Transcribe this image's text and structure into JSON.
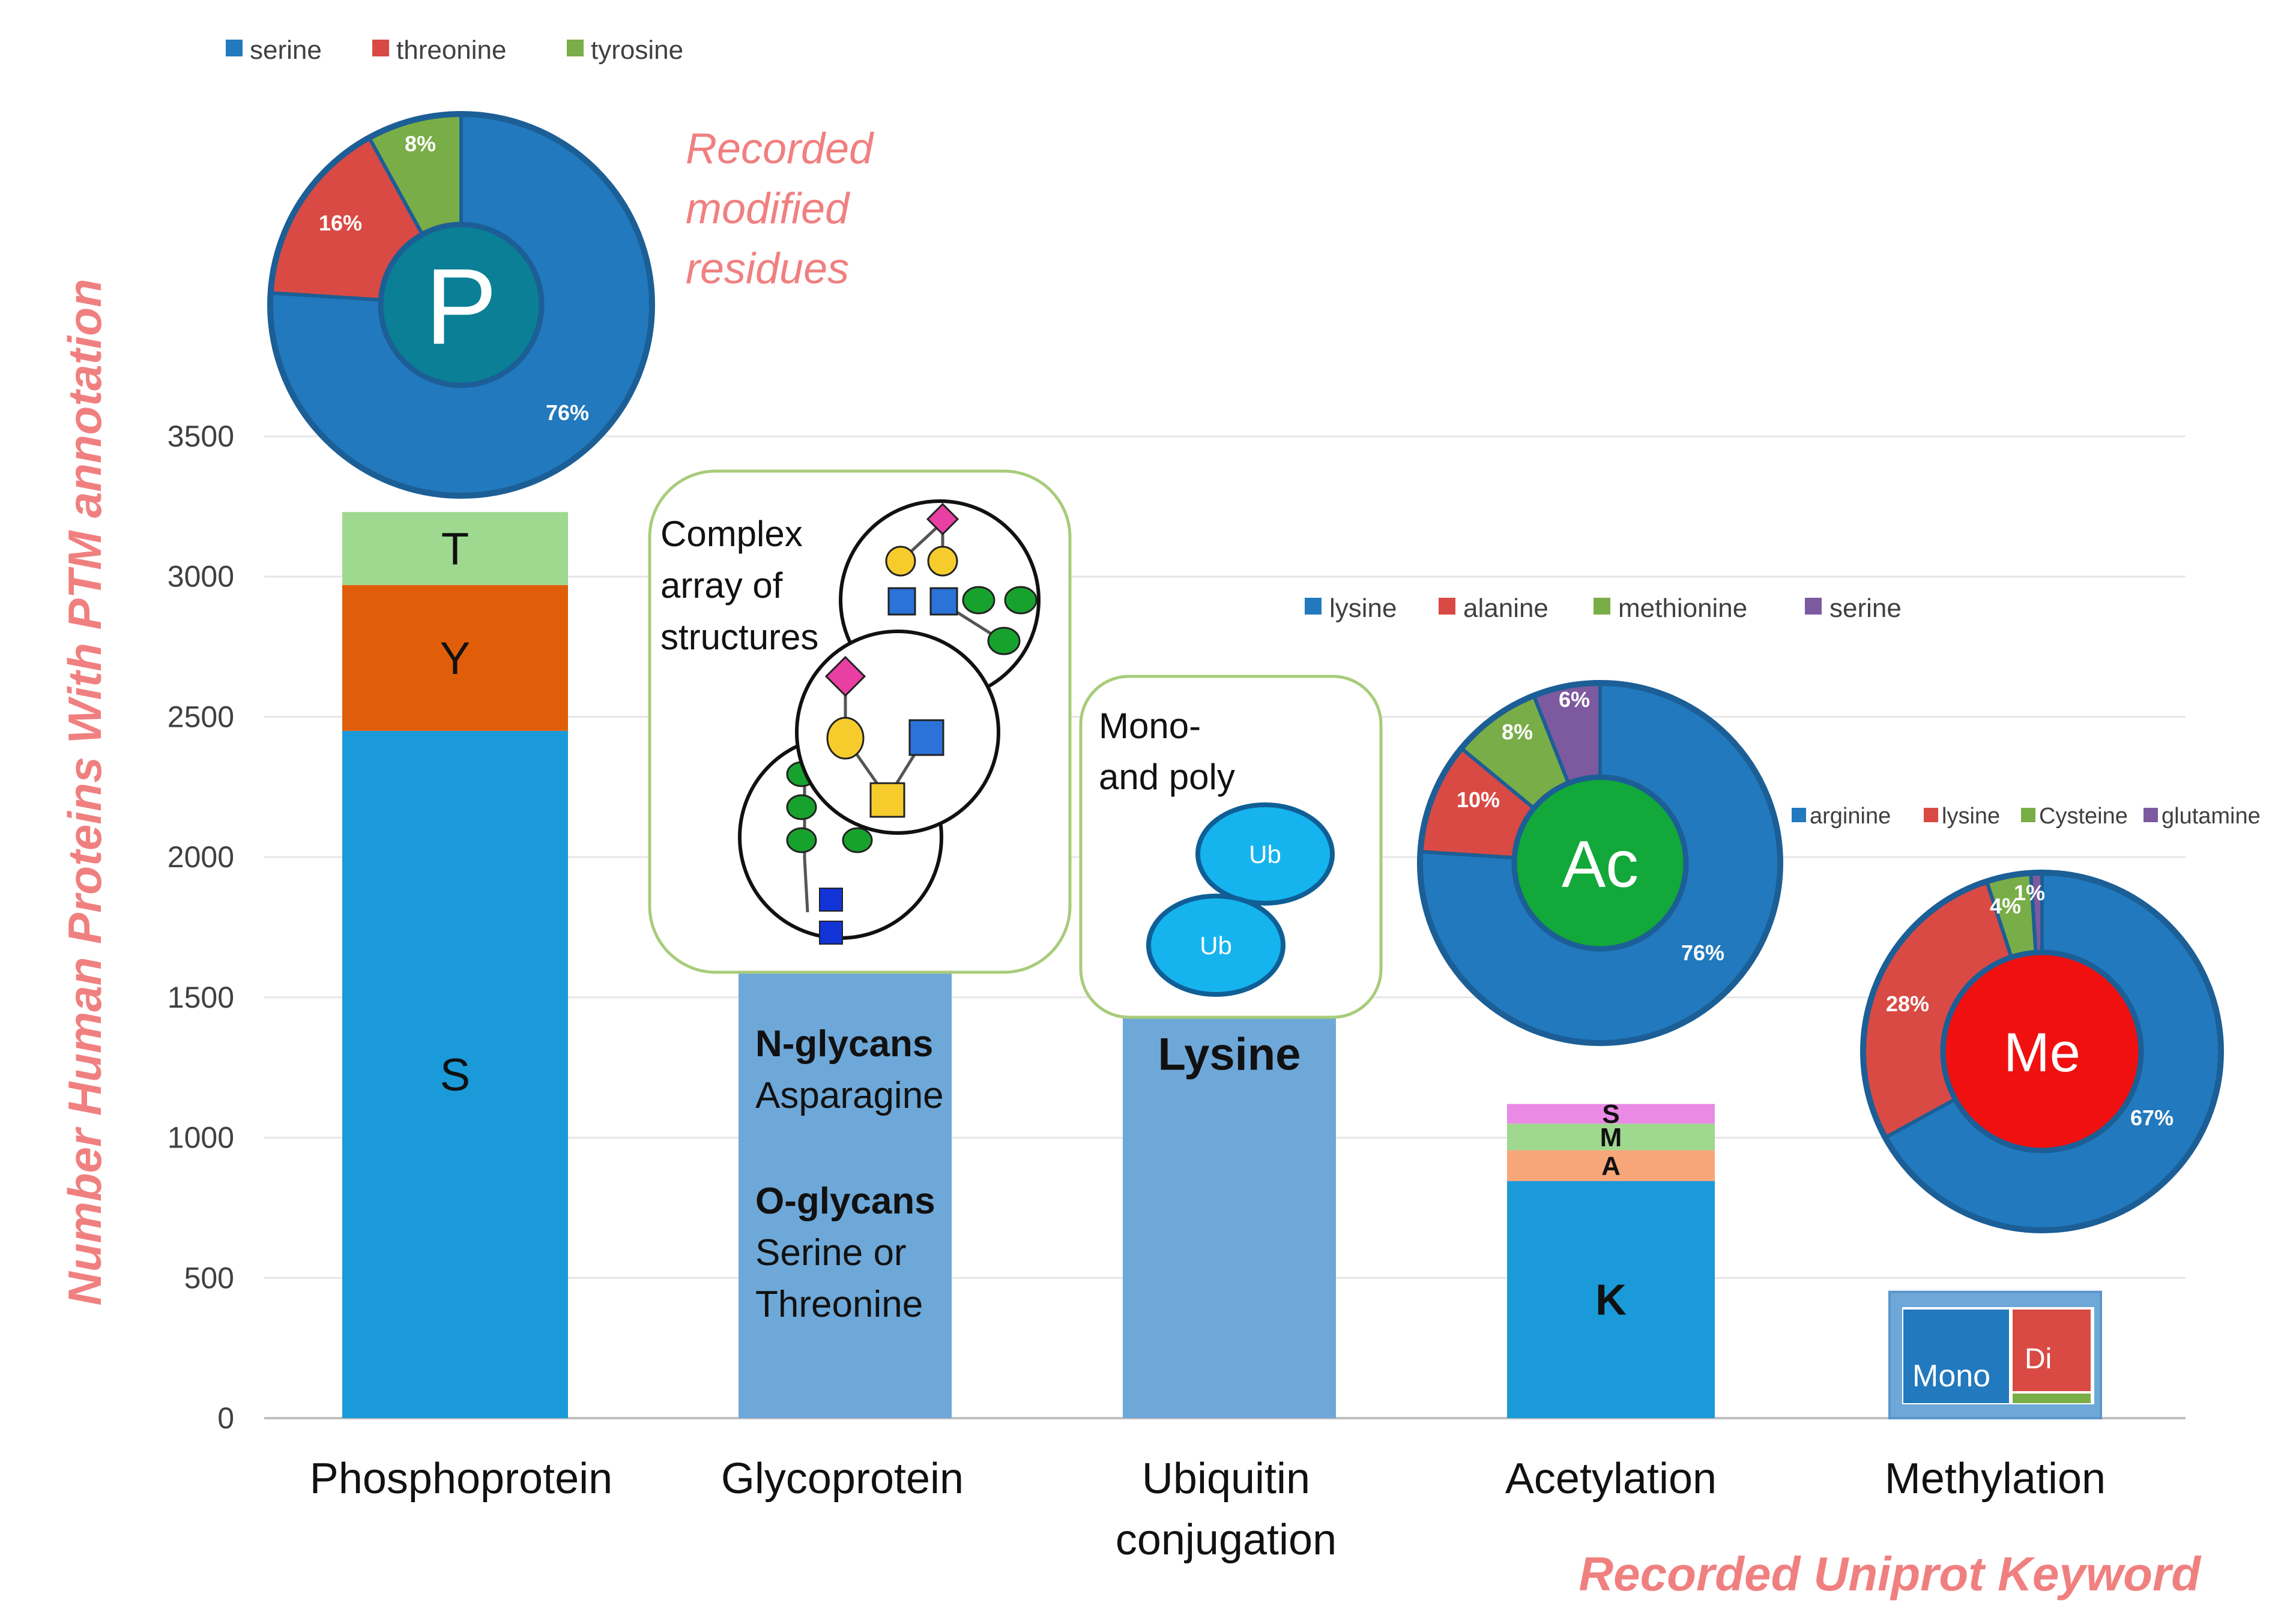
{
  "colors": {
    "serine_blue": "#2279bd",
    "threonine_red": "#d94a45",
    "tyrosine_green": "#79ad47",
    "purple": "#7d5aa0",
    "bar_S": "#1a9ad8",
    "bar_Y": "#e05e0a",
    "bar_T": "#9fd88f",
    "bar_plain": "#6ea8d8",
    "pink_text": "#f08080"
  },
  "chart_data": {
    "type": "bar",
    "ylabel": "Number Human Proteins With PTM annotation",
    "xlabel": "Recorded Uniprot Keyword",
    "ylim": [
      0,
      3500
    ],
    "yticks": [
      0,
      500,
      1000,
      1500,
      2000,
      2500,
      3000,
      3500
    ],
    "grid": true,
    "categories": [
      {
        "key": "phospho",
        "label": "Phosphoprotein",
        "stack": [
          {
            "label": "S",
            "value": 2450,
            "color": "#1a9ad8"
          },
          {
            "label": "Y",
            "value": 520,
            "color": "#e05e0a"
          },
          {
            "label": "T",
            "value": 260,
            "color": "#9fd88f"
          }
        ]
      },
      {
        "key": "glyco",
        "label": "Glycoprotein",
        "stack": [
          {
            "label": "",
            "value": 1710,
            "color": "#6ea8d8"
          }
        ]
      },
      {
        "key": "ubiq",
        "label_lines": [
          "Ubiquitin",
          "conjugation"
        ],
        "stack": [
          {
            "label": "Lysine",
            "value": 1520,
            "color": "#6ea8d8"
          }
        ]
      },
      {
        "key": "acetyl",
        "label": "Acetylation",
        "stack": [
          {
            "label": "K",
            "value": 845,
            "color": "#1a9ad8"
          },
          {
            "label": "A",
            "value": 110,
            "color": "#f7a67a"
          },
          {
            "label": "M",
            "value": 95,
            "color": "#9fd88f"
          },
          {
            "label": "S",
            "value": 70,
            "color": "#ea8ae6"
          }
        ]
      },
      {
        "key": "methyl",
        "label": "Methylation",
        "stack": [
          {
            "label": "",
            "value": 450,
            "color": "#6ea8d8"
          }
        ]
      }
    ],
    "pies": [
      {
        "key": "p",
        "center_label": "P",
        "center_color": "#0a7f96",
        "legend": [
          "serine",
          "threonine",
          "tyrosine"
        ],
        "slices": [
          {
            "name": "serine",
            "value": 76,
            "label": "76%",
            "color": "#2279bd"
          },
          {
            "name": "threonine",
            "value": 16,
            "label": "16%",
            "color": "#d94a45"
          },
          {
            "name": "tyrosine",
            "value": 8,
            "label": "8%",
            "color": "#79ad47"
          }
        ]
      },
      {
        "key": "ac",
        "center_label": "Ac",
        "center_color": "#12a83a",
        "legend": [
          "lysine",
          "alanine",
          "methionine",
          "serine"
        ],
        "slices": [
          {
            "name": "lysine",
            "value": 76,
            "label": "76%",
            "color": "#2279bd"
          },
          {
            "name": "alanine",
            "value": 10,
            "label": "10%",
            "color": "#d94a45"
          },
          {
            "name": "methionine",
            "value": 8,
            "label": "8%",
            "color": "#79ad47"
          },
          {
            "name": "serine",
            "value": 6,
            "label": "6%",
            "color": "#7d5aa0"
          }
        ]
      },
      {
        "key": "me",
        "center_label": "Me",
        "center_color": "#f01010",
        "legend": [
          "arginine",
          "lysine",
          "Cysteine",
          "glutamine"
        ],
        "slices": [
          {
            "name": "arginine",
            "value": 67,
            "label": "67%",
            "color": "#2279bd"
          },
          {
            "name": "lysine",
            "value": 28,
            "label": "28%",
            "color": "#d94a45"
          },
          {
            "name": "Cysteine",
            "value": 4,
            "label": "4%",
            "color": "#79ad47"
          },
          {
            "name": "glutamine",
            "value": 1,
            "label": "1%",
            "color": "#7d5aa0"
          }
        ]
      }
    ]
  },
  "annotations": {
    "recorded_residues": [
      "Recorded",
      "modified",
      "residues"
    ],
    "glyco_box": [
      "Complex",
      "array of",
      "structures"
    ],
    "glyco_text": {
      "n_title": "N-glycans",
      "n_sub": "Asparagine",
      "o_title": "O-glycans",
      "o_sub1": "Serine or",
      "o_sub2": "Threonine"
    },
    "ubiq_box": [
      "Mono-",
      "and poly"
    ],
    "ub_label": "Ub",
    "methyl_inset": {
      "mono": "Mono",
      "di": "Di"
    }
  }
}
